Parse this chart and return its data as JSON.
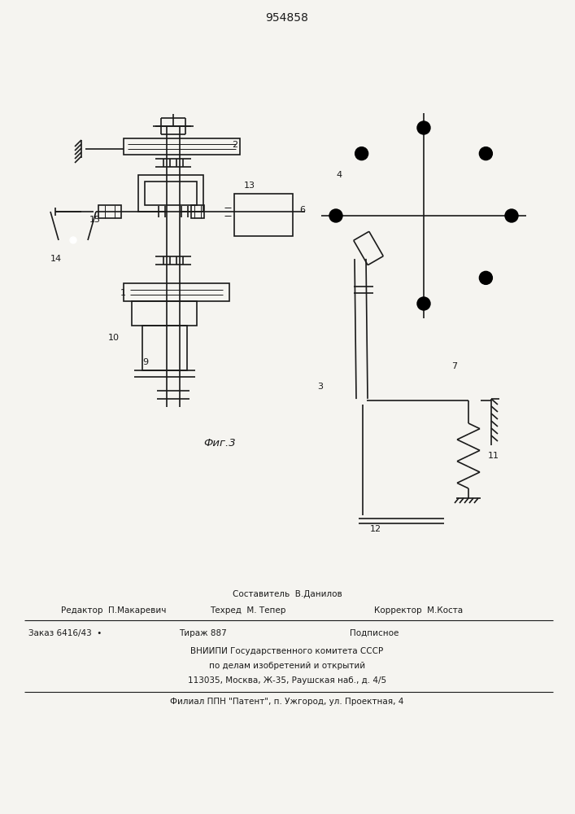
{
  "title": "954858",
  "fig_label": "Фиг.3",
  "bg_color": "#f5f4f0",
  "line_color": "#1a1a1a",
  "footer": {
    "line1_center": "Составитель  В.Данилов",
    "line2_left": "Редактор  П.Макаревич",
    "line2_center": "Техред  М. Тепер",
    "line2_right": "Корректор  М.Коста",
    "line3_left": "Заказ 6416/43  •",
    "line3_center": "Тираж 887",
    "line3_right": "Подписное",
    "line4": "ВНИИПИ Государственного комитета СССР",
    "line5": "по делам изобретений и открытий",
    "line6": "113035, Москва, Ж-35, Раушская наб., д. 4/5",
    "line7": "Филиал ППН \"Патент\", п. Ужгород, ул. Проектная, 4"
  }
}
